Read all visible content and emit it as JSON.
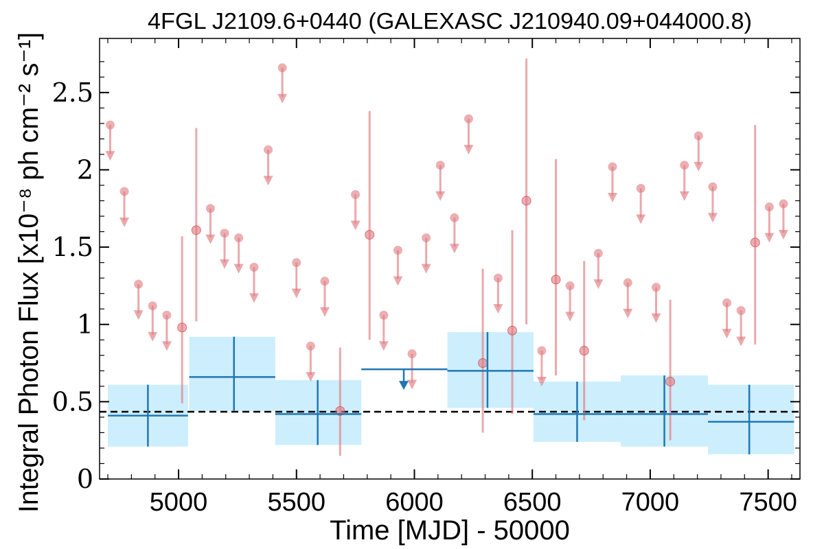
{
  "chart_data": {
    "type": "scatter",
    "title": "4FGL J2109.6+0440 (GALEXASC J210940.09+044000.8)",
    "xlabel": "Time [MJD] - 50000",
    "ylabel": "Integral Photon Flux [x10⁻⁸ ph cm⁻² s⁻¹]",
    "xlim": [
      4665,
      7635
    ],
    "ylim": [
      0,
      2.85
    ],
    "xticks": [
      5000,
      5500,
      6000,
      6500,
      7000,
      7500
    ],
    "xtick_labels": [
      "5000",
      "5500",
      "6000",
      "6500",
      "7000",
      "7500"
    ],
    "yticks": [
      0,
      0.5,
      1,
      1.5,
      2,
      2.5
    ],
    "ytick_labels": [
      "0",
      "0.5",
      "1",
      "1.5",
      "2",
      "2.5"
    ],
    "reference_line": {
      "y": 0.435,
      "style": "dashed",
      "color": "#000000"
    },
    "colors": {
      "yearly": "#1f77b4",
      "yearly_band": "#cdeefc",
      "monthly": "#e07a7f"
    },
    "series": [
      {
        "kind": "yearly bins",
        "points": [
          {
            "x": 4870,
            "x_lo": 4700,
            "x_hi": 5040,
            "y": 0.41,
            "y_lo": 0.21,
            "y_hi": 0.61,
            "band_lo": 0.21,
            "band_hi": 0.61
          },
          {
            "x": 5235,
            "x_lo": 5045,
            "x_hi": 5410,
            "y": 0.66,
            "y_lo": 0.44,
            "y_hi": 0.92,
            "band_lo": 0.44,
            "band_hi": 0.92
          },
          {
            "x": 5590,
            "x_lo": 5410,
            "x_hi": 5775,
            "y": 0.42,
            "y_lo": 0.22,
            "y_hi": 0.64,
            "band_lo": 0.22,
            "band_hi": 0.64
          },
          {
            "x": 6310,
            "x_lo": 6140,
            "x_hi": 6505,
            "y": 0.7,
            "y_lo": 0.46,
            "y_hi": 0.95,
            "band_lo": 0.46,
            "band_hi": 0.95
          },
          {
            "x": 6690,
            "x_lo": 6505,
            "x_hi": 6875,
            "y": 0.42,
            "y_lo": 0.24,
            "y_hi": 0.63,
            "band_lo": 0.24,
            "band_hi": 0.63
          },
          {
            "x": 7060,
            "x_lo": 6875,
            "x_hi": 7245,
            "y": 0.42,
            "y_lo": 0.21,
            "y_hi": 0.67,
            "band_lo": 0.21,
            "band_hi": 0.67
          },
          {
            "x": 7420,
            "x_lo": 7245,
            "x_hi": 7610,
            "y": 0.37,
            "y_lo": 0.16,
            "y_hi": 0.61,
            "band_lo": 0.16,
            "band_hi": 0.61
          }
        ],
        "upper_limits": [
          {
            "x": 5955,
            "x_lo": 5775,
            "x_hi": 6140,
            "y": 0.71
          }
        ]
      },
      {
        "kind": "monthly bins",
        "points": [
          {
            "x": 5015,
            "y": 0.98,
            "y_lo": 0.49,
            "y_hi": 1.57
          },
          {
            "x": 5075,
            "y": 1.61,
            "y_lo": 1.02,
            "y_hi": 2.27
          },
          {
            "x": 5685,
            "y": 0.44,
            "y_lo": 0.15,
            "y_hi": 0.85
          },
          {
            "x": 5810,
            "y": 1.58,
            "y_lo": 0.9,
            "y_hi": 2.38
          },
          {
            "x": 6290,
            "y": 0.75,
            "y_lo": 0.3,
            "y_hi": 1.36
          },
          {
            "x": 6415,
            "y": 0.96,
            "y_lo": 0.42,
            "y_hi": 1.61
          },
          {
            "x": 6475,
            "y": 1.8,
            "y_lo": 1.0,
            "y_hi": 2.72
          },
          {
            "x": 6600,
            "y": 1.29,
            "y_lo": 0.67,
            "y_hi": 2.07
          },
          {
            "x": 6720,
            "y": 0.83,
            "y_lo": 0.38,
            "y_hi": 1.41
          },
          {
            "x": 7085,
            "y": 0.63,
            "y_lo": 0.25,
            "y_hi": 1.16
          },
          {
            "x": 7445,
            "y": 1.53,
            "y_lo": 0.87,
            "y_hi": 2.29
          }
        ],
        "upper_limits": [
          {
            "x": 4710,
            "y": 2.29
          },
          {
            "x": 4770,
            "y": 1.86
          },
          {
            "x": 4830,
            "y": 1.26
          },
          {
            "x": 4890,
            "y": 1.12
          },
          {
            "x": 4950,
            "y": 1.06
          },
          {
            "x": 5135,
            "y": 1.75
          },
          {
            "x": 5195,
            "y": 1.59
          },
          {
            "x": 5255,
            "y": 1.56
          },
          {
            "x": 5320,
            "y": 1.37
          },
          {
            "x": 5380,
            "y": 2.13
          },
          {
            "x": 5440,
            "y": 2.66
          },
          {
            "x": 5500,
            "y": 1.4
          },
          {
            "x": 5560,
            "y": 0.86
          },
          {
            "x": 5620,
            "y": 1.28
          },
          {
            "x": 5750,
            "y": 1.84
          },
          {
            "x": 5870,
            "y": 1.06
          },
          {
            "x": 5930,
            "y": 1.48
          },
          {
            "x": 5990,
            "y": 0.81
          },
          {
            "x": 6050,
            "y": 1.56
          },
          {
            "x": 6110,
            "y": 2.03
          },
          {
            "x": 6170,
            "y": 1.69
          },
          {
            "x": 6230,
            "y": 2.33
          },
          {
            "x": 6355,
            "y": 1.3
          },
          {
            "x": 6540,
            "y": 0.83
          },
          {
            "x": 6660,
            "y": 1.25
          },
          {
            "x": 6780,
            "y": 1.46
          },
          {
            "x": 6840,
            "y": 2.02
          },
          {
            "x": 6905,
            "y": 1.27
          },
          {
            "x": 6960,
            "y": 1.88
          },
          {
            "x": 7025,
            "y": 1.24
          },
          {
            "x": 7145,
            "y": 2.03
          },
          {
            "x": 7205,
            "y": 2.22
          },
          {
            "x": 7265,
            "y": 1.89
          },
          {
            "x": 7325,
            "y": 1.14
          },
          {
            "x": 7385,
            "y": 1.09
          },
          {
            "x": 7505,
            "y": 1.76
          },
          {
            "x": 7565,
            "y": 1.78
          }
        ]
      }
    ]
  }
}
